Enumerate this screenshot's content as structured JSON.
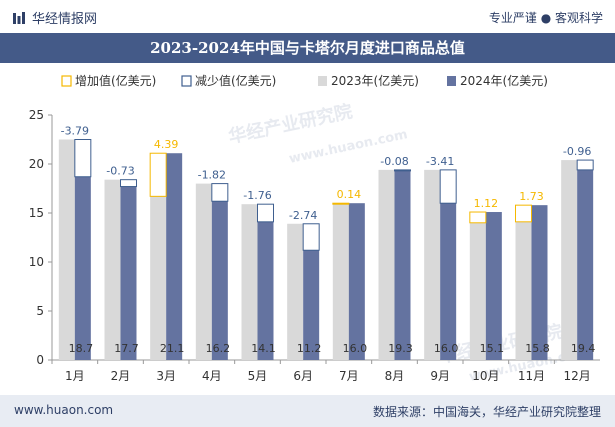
{
  "header": {
    "brand_name": "华经情报网",
    "tagline": "专业严谨 ● 客观科学"
  },
  "watermarks": [
    "华经产业研究院",
    "www.huaon.com",
    "华经产业研究院",
    "www.huaon.com"
  ],
  "footer": {
    "website": "www.huaon.com",
    "source": "数据来源：中国海关，华经产业研究院整理"
  },
  "colors": {
    "bar_2023": "#d9d9d9",
    "bar_2024": "#6473a0",
    "increase": "#f5b800",
    "decrease": "#3f5f8f",
    "title_bg": "#445a88"
  },
  "chart_data": {
    "type": "bar",
    "title": "2023-2024年中国与卡塔尔月度进口商品总值",
    "categories": [
      "1月",
      "2月",
      "3月",
      "4月",
      "5月",
      "6月",
      "7月",
      "8月",
      "9月",
      "10月",
      "11月",
      "12月"
    ],
    "series": [
      {
        "name": "2023年(亿美元)",
        "values": [
          22.5,
          18.4,
          16.7,
          18.0,
          15.9,
          13.9,
          15.9,
          19.4,
          19.4,
          14.0,
          14.1,
          20.4
        ]
      },
      {
        "name": "2024年(亿美元)",
        "values": [
          18.7,
          17.7,
          21.1,
          16.2,
          14.1,
          11.2,
          16.0,
          19.3,
          16.0,
          15.1,
          15.8,
          19.4
        ]
      }
    ],
    "changes": {
      "legend_increase": "增加值(亿美元)",
      "legend_decrease": "减少值(亿美元)",
      "values": [
        -3.79,
        -0.73,
        4.39,
        -1.82,
        -1.76,
        -2.74,
        0.14,
        -0.08,
        -3.41,
        1.12,
        1.73,
        -0.96
      ],
      "labels": [
        "-3.79",
        "-0.73",
        "4.39",
        "-1.82",
        "-1.76",
        "-2.74",
        "0.14",
        "-0.08",
        "-3.41",
        "1.12",
        "1.73",
        "-0.96"
      ]
    },
    "bar_labels_2024": [
      "18.7",
      "17.7",
      "21.1",
      "16.2",
      "14.1",
      "11.2",
      "16.0",
      "19.3",
      "16.0",
      "15.1",
      "15.8",
      "19.4"
    ],
    "ylim": [
      0,
      25
    ],
    "yticks": [
      0,
      5,
      10,
      15,
      20,
      25
    ],
    "xlabel": "",
    "ylabel": "",
    "grid": false,
    "legend_position": "top"
  }
}
